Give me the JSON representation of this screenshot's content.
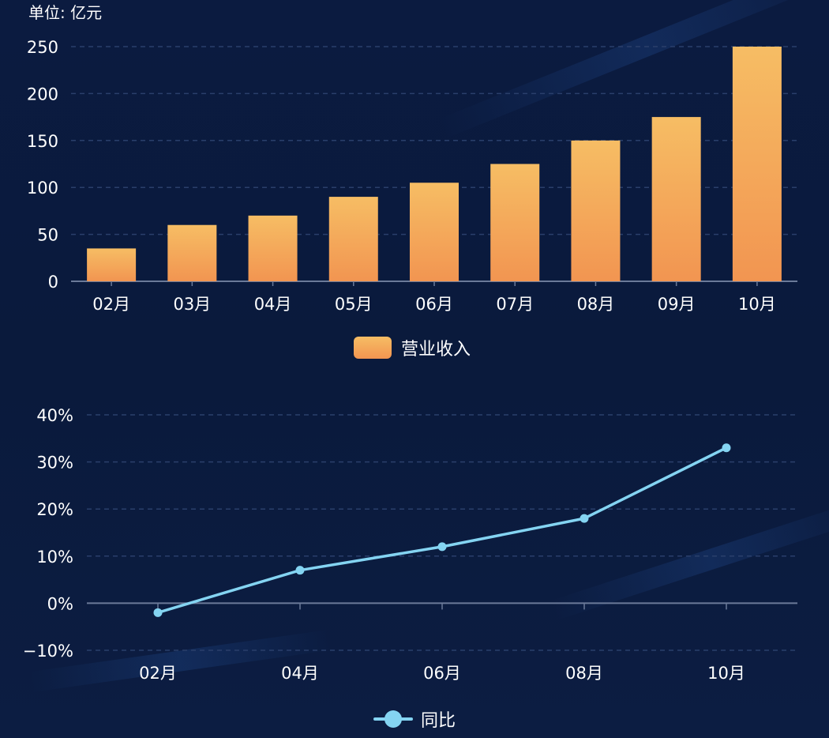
{
  "unit_label": "单位: 亿元",
  "colors": {
    "bar_top": "#f6bd64",
    "bar_bottom": "#f29551",
    "line": "#84d4f2",
    "grid": "#2a3f6b",
    "axis": "#6b7a99"
  },
  "chart_data": [
    {
      "type": "bar",
      "categories": [
        "02月",
        "03月",
        "04月",
        "05月",
        "06月",
        "07月",
        "08月",
        "09月",
        "10月"
      ],
      "series": [
        {
          "name": "营业收入",
          "values": [
            35,
            60,
            70,
            90,
            105,
            125,
            150,
            175,
            250
          ]
        }
      ],
      "y_ticks": [
        "0",
        "50",
        "100",
        "150",
        "200",
        "250"
      ],
      "ylim": [
        0,
        250
      ],
      "grid": true,
      "legend": "bottom-center"
    },
    {
      "type": "line",
      "categories": [
        "02月",
        "04月",
        "06月",
        "08月",
        "10月"
      ],
      "series": [
        {
          "name": "同比",
          "values": [
            -2,
            7,
            12,
            18,
            33
          ]
        }
      ],
      "y_ticks": [
        "−10%",
        "0%",
        "10%",
        "20%",
        "30%",
        "40%"
      ],
      "ylim": [
        -10,
        40
      ],
      "grid": true,
      "legend": "bottom-center"
    }
  ]
}
